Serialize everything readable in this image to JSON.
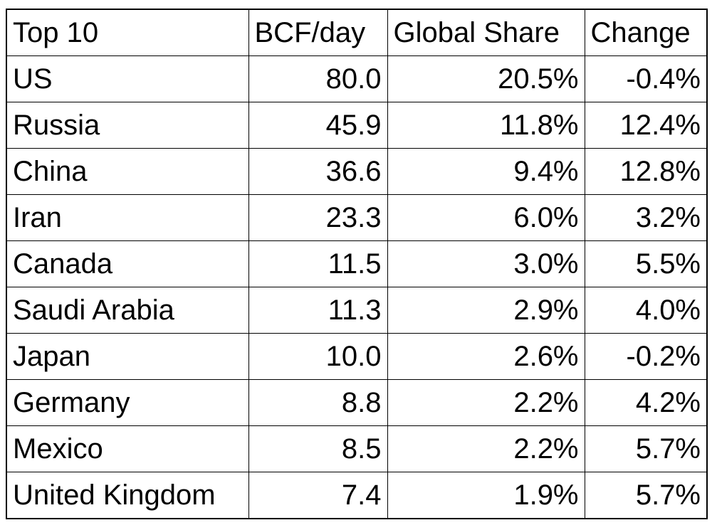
{
  "table": {
    "header": [
      "Top 10",
      "BCF/day",
      "Global Share",
      "Change"
    ],
    "rows": [
      [
        "US",
        "80.0",
        "20.5%",
        "-0.4%"
      ],
      [
        "Russia",
        "45.9",
        "11.8%",
        "12.4%"
      ],
      [
        "China",
        "36.6",
        "9.4%",
        "12.8%"
      ],
      [
        "Iran",
        "23.3",
        "6.0%",
        "3.2%"
      ],
      [
        "Canada",
        "11.5",
        "3.0%",
        "5.5%"
      ],
      [
        "Saudi Arabia",
        "11.3",
        "2.9%",
        "4.0%"
      ],
      [
        "Japan",
        "10.0",
        "2.6%",
        "-0.2%"
      ],
      [
        "Germany",
        "8.8",
        "2.2%",
        "4.2%"
      ],
      [
        "Mexico",
        "8.5",
        "2.2%",
        "5.7%"
      ],
      [
        "United Kingdom",
        "7.4",
        "1.9%",
        "5.7%"
      ]
    ]
  }
}
